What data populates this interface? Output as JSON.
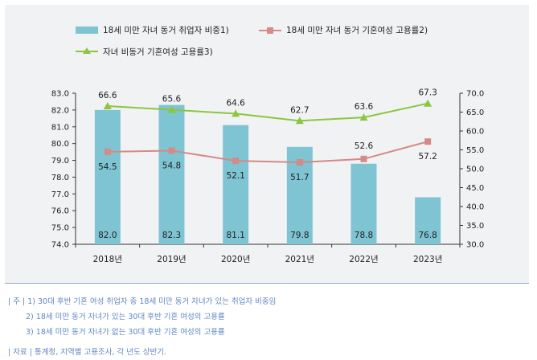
{
  "chart_data": {
    "type": "bar+line",
    "categories": [
      "2018년",
      "2019년",
      "2020년",
      "2021년",
      "2022년",
      "2023년"
    ],
    "series": [
      {
        "name": "18세 미만 자녀 동거 취업자 비중1)",
        "kind": "bar",
        "axis": "left",
        "color": "#7ec4d3",
        "values": [
          82.0,
          82.3,
          81.1,
          79.8,
          78.8,
          76.8
        ]
      },
      {
        "name": "18세 미만 자녀 동거 기혼여성 고용률2)",
        "kind": "line",
        "axis": "right",
        "color": "#d48a87",
        "marker": "square",
        "values": [
          54.5,
          54.8,
          52.1,
          51.7,
          52.6,
          57.2
        ]
      },
      {
        "name": "자녀 비동거 기혼여성 고용률3)",
        "kind": "line",
        "axis": "right",
        "color": "#8cc63f",
        "marker": "triangle",
        "values": [
          66.6,
          65.6,
          64.6,
          62.7,
          63.6,
          67.3
        ]
      }
    ],
    "y_left": {
      "min": 74.0,
      "max": 83.0,
      "step": 1.0,
      "ticks": [
        "74.0",
        "75.0",
        "76.0",
        "77.0",
        "78.0",
        "79.0",
        "80.0",
        "81.0",
        "82.0",
        "83.0"
      ]
    },
    "y_right": {
      "min": 30.0,
      "max": 70.0,
      "step": 5.0,
      "ticks": [
        "30.0",
        "35.0",
        "40.0",
        "45.0",
        "50.0",
        "55.0",
        "60.0",
        "65.0",
        "70.0"
      ]
    },
    "data_labels": {
      "bar": [
        "82.0",
        "82.3",
        "81.1",
        "79.8",
        "78.8",
        "76.8"
      ],
      "line1": [
        "54.5",
        "54.8",
        "52.1",
        "51.7",
        "52.6",
        "57.2"
      ],
      "line2": [
        "66.6",
        "65.6",
        "64.6",
        "62.7",
        "63.6",
        "67.3"
      ]
    },
    "legend_position": "top",
    "grid": false
  },
  "notes": {
    "label": "주",
    "items": [
      "1) 30대 후반 기혼 여성 취업자 중 18세 미만 동거 자녀가 있는 취업자 비중임",
      "2) 18세 미만 동거 자녀가 있는 30대 후반 기혼 여성의 고용률",
      "3) 18세 미만 동거 자녀가 없는 30대 후반 기혼 여성의 고용률"
    ],
    "source_label": "자료",
    "source_text": "통계청, 지역별 고용조사, 각 년도 상반기."
  }
}
